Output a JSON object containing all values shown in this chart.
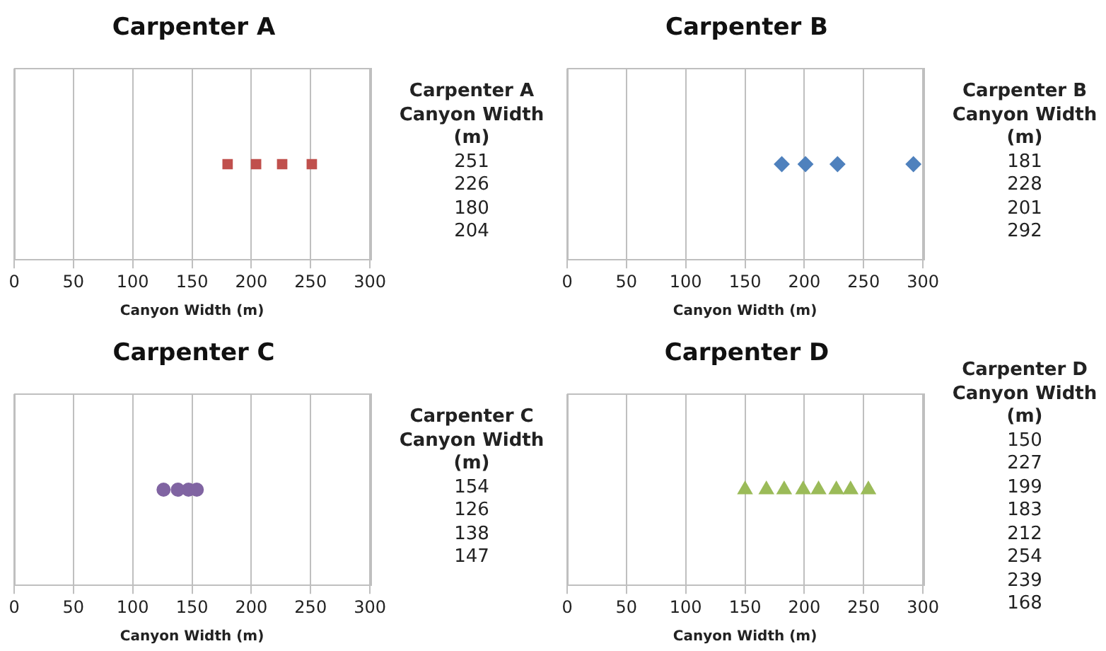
{
  "chart_data": [
    {
      "type": "scatter",
      "orientation": "horizontal",
      "title": "Carpenter A",
      "xlabel": "Canyon Width (m)",
      "annotations": [
        "Carpenter A Canyon Width (m)",
        "251",
        "226",
        "180",
        "204"
      ],
      "marker": "square",
      "grid": "x",
      "legend": false,
      "xlim": [
        0,
        300
      ],
      "xticks": [
        0,
        50,
        100,
        150,
        200,
        250,
        300
      ],
      "categories": [
        null
      ],
      "series": [
        {
          "color": "#c0504d",
          "values": [
            251
          ]
        },
        {
          "color": "#c0504d",
          "values": [
            226
          ]
        },
        {
          "color": "#c0504d",
          "values": [
            180
          ]
        },
        {
          "color": "#c0504d",
          "values": [
            204
          ]
        }
      ]
    },
    {
      "type": "scatter",
      "orientation": "horizontal",
      "title": "Carpenter B",
      "xlabel": "Canyon Width (m)",
      "annotations": [
        "Carpenter B Canyon Width (m)",
        "181",
        "228",
        "201",
        "292"
      ],
      "marker": "diamond",
      "grid": "x",
      "legend": false,
      "xlim": [
        0,
        300
      ],
      "xticks": [
        0,
        50,
        100,
        150,
        200,
        250,
        300
      ],
      "categories": [
        null
      ],
      "series": [
        {
          "color": "#4f81bd",
          "values": [
            181
          ]
        },
        {
          "color": "#4f81bd",
          "values": [
            228
          ]
        },
        {
          "color": "#4f81bd",
          "values": [
            201
          ]
        },
        {
          "color": "#4f81bd",
          "values": [
            292
          ]
        }
      ]
    },
    {
      "type": "scatter",
      "orientation": "horizontal",
      "title": "Carpenter C",
      "xlabel": "Canyon Width (m)",
      "annotations": [
        "Carpenter C Canyon Width (m)",
        "154",
        "126",
        "138",
        "147"
      ],
      "marker": "circle",
      "grid": "x",
      "legend": false,
      "xlim": [
        0,
        300
      ],
      "xticks": [
        0,
        50,
        100,
        150,
        200,
        250,
        300
      ],
      "categories": [
        null
      ],
      "series": [
        {
          "color": "#8064a2",
          "values": [
            154
          ]
        },
        {
          "color": "#8064a2",
          "values": [
            126
          ]
        },
        {
          "color": "#8064a2",
          "values": [
            138
          ]
        },
        {
          "color": "#8064a2",
          "values": [
            147
          ]
        }
      ]
    },
    {
      "type": "scatter",
      "orientation": "horizontal",
      "title": "Carpenter D",
      "xlabel": "Canyon Width (m)",
      "annotations": [
        "Carpenter D Canyon Width (m)",
        "150",
        "227",
        "199",
        "183",
        "212",
        "254",
        "239",
        "168"
      ],
      "marker": "triangle",
      "grid": "x",
      "legend": false,
      "xlim": [
        0,
        300
      ],
      "xticks": [
        0,
        50,
        100,
        150,
        200,
        250,
        300
      ],
      "categories": [
        null
      ],
      "series": [
        {
          "color": "#9bbb59",
          "values": [
            150
          ]
        },
        {
          "color": "#9bbb59",
          "values": [
            227
          ]
        },
        {
          "color": "#9bbb59",
          "values": [
            199
          ]
        },
        {
          "color": "#9bbb59",
          "values": [
            183
          ]
        },
        {
          "color": "#9bbb59",
          "values": [
            212
          ]
        },
        {
          "color": "#9bbb59",
          "values": [
            254
          ]
        },
        {
          "color": "#9bbb59",
          "values": [
            239
          ]
        },
        {
          "color": "#9bbb59",
          "values": [
            168
          ]
        }
      ]
    }
  ]
}
